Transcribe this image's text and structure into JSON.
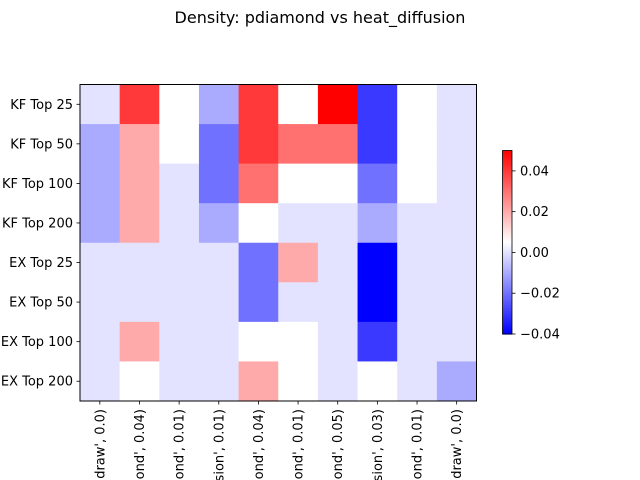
{
  "chart_data": {
    "type": "heatmap",
    "title": "Density: pdiamond vs heat_diffusion",
    "rows": [
      "KF Top 25",
      "KF Top 50",
      "KF Top 100",
      "KF Top 200",
      "EX Top 25",
      "EX Top 50",
      "EX Top 100",
      "EX Top 200"
    ],
    "cols": [
      "draw', 0.0)",
      "ond', 0.04)",
      "ond', 0.01)",
      "sion', 0.01)",
      "ond', 0.04)",
      "ond', 0.01)",
      "ond', 0.05)",
      "sion', 0.03)",
      "ond', 0.01)",
      "draw', 0.0)"
    ],
    "values": [
      [
        0,
        0.04,
        0.005,
        -0.01,
        0.04,
        0.005,
        0.05,
        -0.03,
        0.005,
        0
      ],
      [
        -0.01,
        0.02,
        0.005,
        -0.02,
        0.04,
        0.03,
        0.03,
        -0.03,
        0.005,
        0
      ],
      [
        -0.01,
        0.02,
        0,
        -0.02,
        0.03,
        0.005,
        0.005,
        -0.02,
        0.005,
        0
      ],
      [
        -0.01,
        0.02,
        0,
        -0.01,
        0.005,
        0,
        0,
        -0.01,
        0,
        0
      ],
      [
        0,
        0,
        0,
        0,
        -0.02,
        0.02,
        0,
        -0.04,
        0,
        0
      ],
      [
        0,
        0,
        0,
        0,
        -0.02,
        0,
        0,
        -0.04,
        0,
        0
      ],
      [
        0,
        0.02,
        0,
        0,
        0.005,
        0.005,
        0,
        -0.03,
        0,
        0
      ],
      [
        0,
        0.005,
        0,
        0,
        0.02,
        0.005,
        0,
        0.005,
        0,
        -0.01
      ]
    ],
    "vmin": -0.04,
    "vmax": 0.05,
    "colormap": "bwr",
    "colorbar_ticks": [
      -0.04,
      -0.02,
      0.0,
      0.02,
      0.04
    ],
    "colorbar_tick_labels": [
      "−0.04",
      "−0.02",
      "0.00",
      "0.02",
      "0.04"
    ]
  }
}
